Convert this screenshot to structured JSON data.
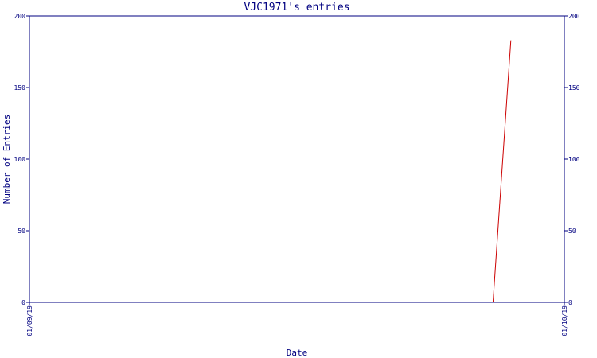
{
  "chart_data": {
    "type": "line",
    "title": "VJC1971's entries",
    "xlabel": "Date",
    "ylabel": "Number of Entries",
    "x_tick_labels": [
      "01/09/19",
      "01/10/19"
    ],
    "ylim": [
      0,
      200
    ],
    "y_ticks": [
      0,
      50,
      100,
      150,
      200
    ],
    "grid": false,
    "colors": {
      "axis": "#000080",
      "series": "#cc0000"
    },
    "series": [
      {
        "x": [
          "2019-09-27",
          "2019-09-28"
        ],
        "values": [
          0,
          183
        ]
      }
    ]
  }
}
